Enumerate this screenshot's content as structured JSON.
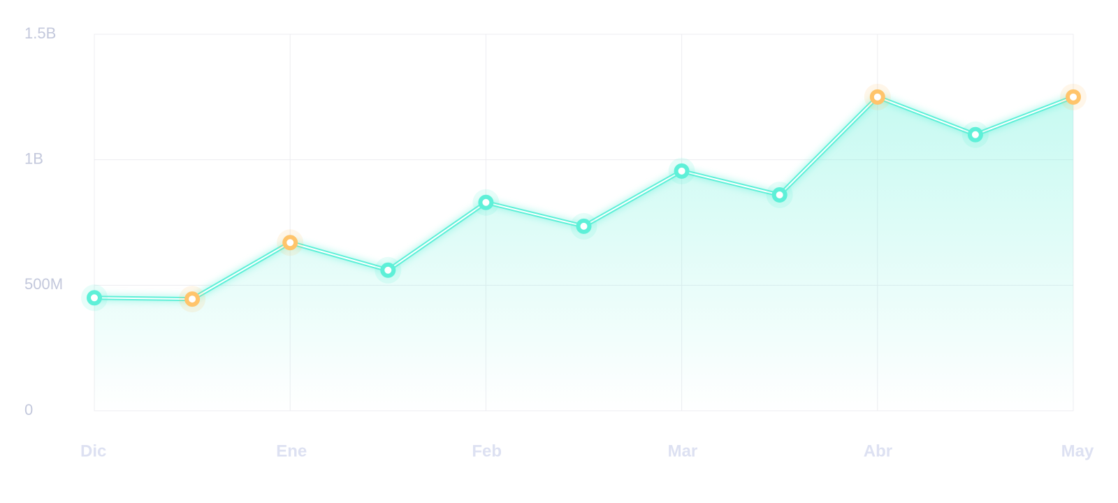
{
  "chart_data": {
    "type": "line",
    "categories": [
      "Dic",
      null,
      "Ene",
      null,
      "Feb",
      null,
      "Mar",
      null,
      "Abr",
      null,
      "May"
    ],
    "values": [
      450000000,
      445000000,
      670000000,
      560000000,
      830000000,
      735000000,
      955000000,
      860000000,
      1250000000,
      1100000000,
      1250000000
    ],
    "color": "#5ef0d8",
    "marker_colors": [
      "#5ef0d8",
      "#ffc46b",
      "#ffc46b",
      "#5ef0d8",
      "#5ef0d8",
      "#5ef0d8",
      "#5ef0d8",
      "#5ef0d8",
      "#ffc46b",
      "#5ef0d8",
      "#ffc46b"
    ],
    "ylim": [
      0,
      1500000000
    ],
    "yticks": [
      0,
      {
        "value": 500000000,
        "label": "500M"
      },
      {
        "value": 1000000000,
        "label": "1B"
      },
      {
        "value": 1500000000,
        "label": "1.5B"
      }
    ],
    "grid": true
  }
}
